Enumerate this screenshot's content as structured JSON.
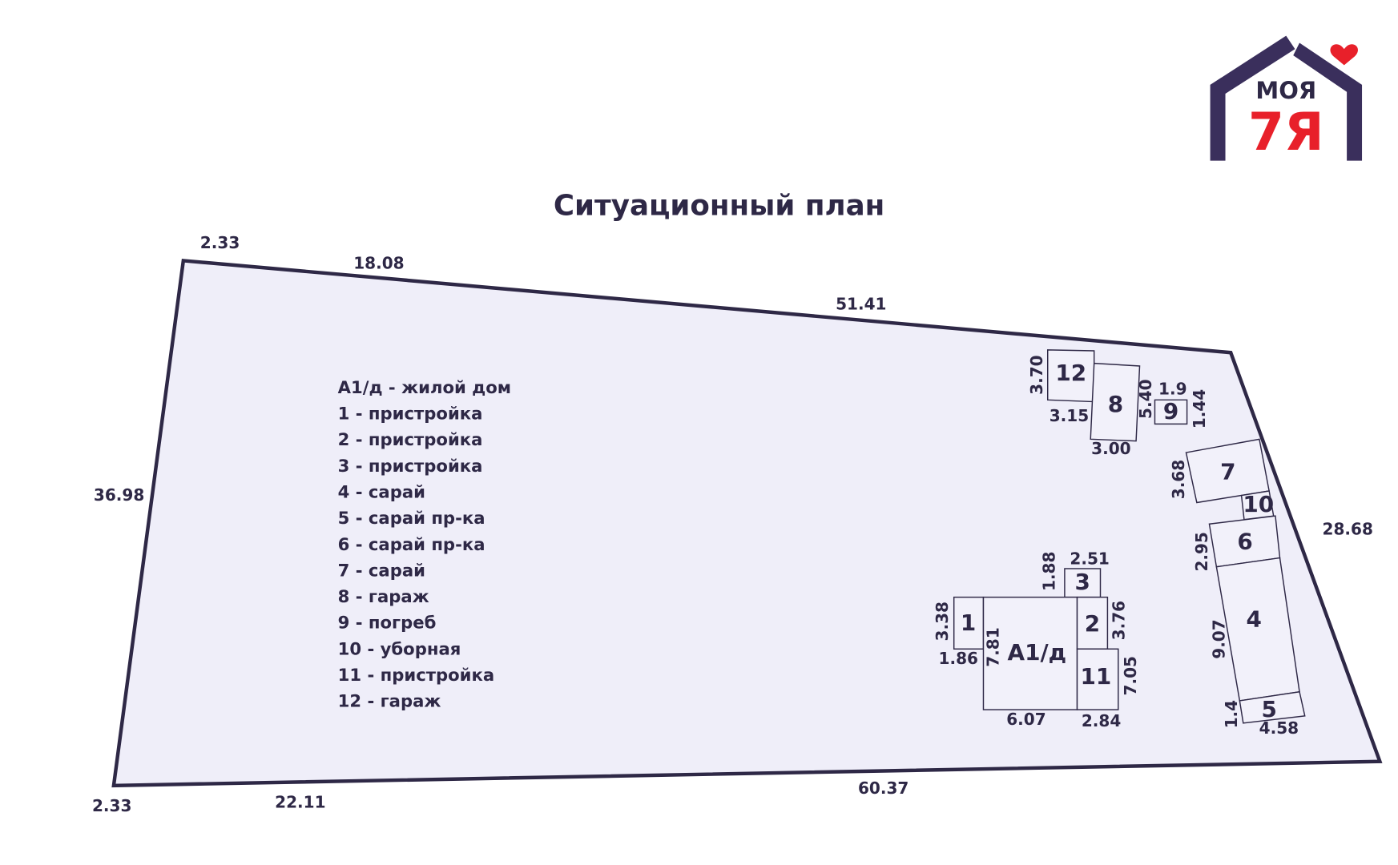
{
  "logo": {
    "top": "МОЯ",
    "bottom": "7Я"
  },
  "title": "Ситуационный план",
  "legend": [
    "А1/д - жилой дом",
    "1 - пристройка",
    "2 - пристройка",
    "3 - пристройка",
    "4 - сарай",
    "5 - сарай пр-ка",
    "6 - сарай пр-ка",
    "7 - сарай",
    "8 - гараж",
    "9 - погреб",
    "10 - уборная",
    "11 - пристройка",
    "12 - гараж"
  ],
  "dimensions": [
    "2.33",
    "18.08",
    "51.41",
    "36.98",
    "28.68",
    "2.33",
    "22.11",
    "60.37",
    "3.70",
    "3.15",
    "5.40",
    "1.9",
    "1.44",
    "3.00",
    "3.68",
    "2.95",
    "9.07",
    "1.4",
    "4.58",
    "1.88",
    "2.51",
    "3.38",
    "3.76",
    "1.86",
    "7.81",
    "7.05",
    "6.07",
    "2.84"
  ],
  "buildings": [
    "12",
    "8",
    "9",
    "7",
    "10",
    "6",
    "4",
    "5",
    "3",
    "1",
    "А1/д",
    "2",
    "11"
  ]
}
